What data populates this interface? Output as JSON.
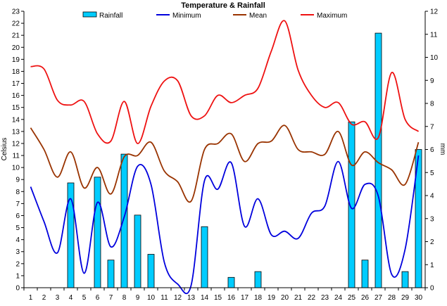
{
  "chart_data": {
    "type": "bar",
    "title": "Temperature & Rainfall",
    "ylabel_left": "Celsius",
    "ylabel_right": "mm",
    "categories": [
      "1",
      "2",
      "3",
      "4",
      "5",
      "6",
      "7",
      "8",
      "9",
      "10",
      "11",
      "12",
      "13",
      "14",
      "15",
      "16",
      "17",
      "18",
      "19",
      "20",
      "21",
      "22",
      "23",
      "24",
      "25",
      "26",
      "27",
      "28",
      "29",
      "30"
    ],
    "ylim_left": [
      0,
      23
    ],
    "yticks_left": [
      "0",
      "1",
      "2",
      "3",
      "4",
      "5",
      "6",
      "7",
      "8",
      "9",
      "10",
      "11",
      "12",
      "13",
      "14",
      "15",
      "16",
      "17",
      "18",
      "19",
      "20",
      "21",
      "22",
      "23"
    ],
    "ylim_right": [
      0,
      12
    ],
    "yticks_right": [
      "0",
      "1",
      "2",
      "3",
      "4",
      "5",
      "6",
      "7",
      "8",
      "9",
      "10",
      "11",
      "12"
    ],
    "legend_position": "top",
    "colors": {
      "rainfall_fill": "#00ccff",
      "rainfall_stroke": "#000000",
      "minimum": "#0000dd",
      "mean": "#993300",
      "maximum": "#ee1111",
      "axis": "#000000"
    },
    "series": [
      {
        "name": "Rainfall",
        "kind": "bar",
        "axis": "right",
        "values": [
          0,
          0,
          0,
          4.55,
          0,
          4.8,
          1.2,
          5.8,
          3.15,
          1.45,
          0,
          0,
          0,
          2.65,
          0,
          0.45,
          0,
          0.7,
          0,
          0,
          0,
          0,
          0,
          0,
          7.2,
          1.2,
          11.05,
          0,
          0.7,
          6.0
        ]
      },
      {
        "name": "Minimum",
        "kind": "line",
        "axis": "left",
        "values": [
          8.4,
          5.5,
          2.9,
          7.4,
          1.2,
          7.1,
          3.4,
          5.9,
          10.1,
          8.6,
          2.1,
          0.3,
          0.2,
          8.9,
          8.2,
          10.4,
          5.1,
          7.4,
          4.4,
          4.7,
          4.1,
          6.2,
          6.8,
          10.5,
          6.6,
          8.6,
          7.6,
          1.1,
          3.2,
          11.0
        ]
      },
      {
        "name": "Mean",
        "kind": "line",
        "axis": "left",
        "values": [
          13.3,
          11.5,
          9.2,
          11.3,
          8.3,
          10.0,
          7.8,
          10.9,
          11.0,
          12.1,
          9.7,
          8.8,
          7.2,
          11.5,
          12.0,
          12.8,
          10.5,
          12.0,
          12.2,
          13.5,
          11.5,
          11.3,
          11.1,
          13.0,
          10.2,
          11.3,
          10.4,
          9.8,
          8.6,
          12.1
        ]
      },
      {
        "name": "Maximum",
        "kind": "line",
        "axis": "left",
        "values": [
          18.4,
          18.2,
          15.6,
          15.2,
          15.5,
          12.8,
          12.2,
          15.5,
          12.0,
          15.1,
          17.2,
          17.2,
          14.3,
          14.3,
          16.0,
          15.4,
          16.0,
          16.6,
          19.7,
          22.2,
          18.1,
          16.0,
          15.0,
          15.4,
          13.6,
          13.8,
          12.5,
          17.9,
          14.0,
          13.0
        ]
      }
    ]
  }
}
